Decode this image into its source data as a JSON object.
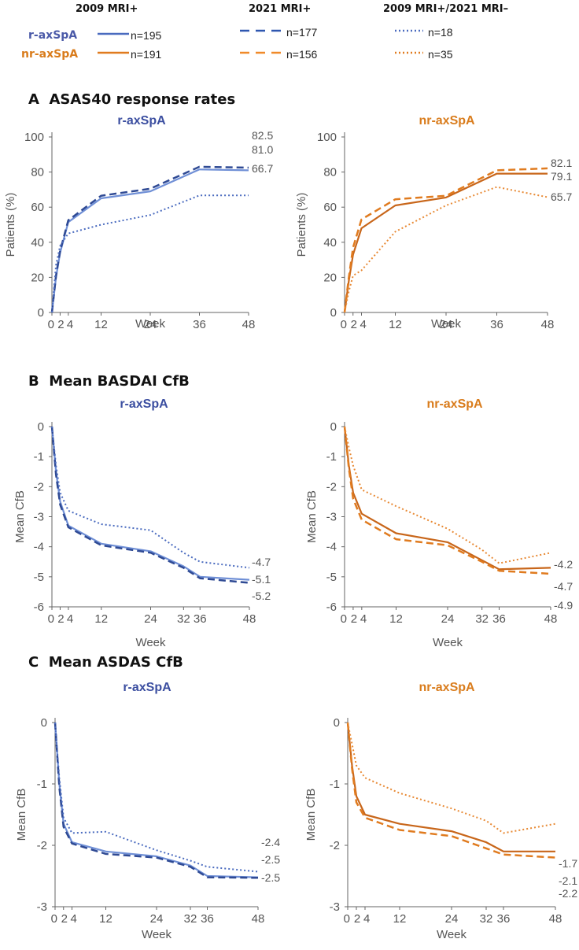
{
  "legend": {
    "col_headers": [
      "2009 MRI+",
      "2021 MRI+",
      "2009 MRI+/2021 MRI–"
    ],
    "rows": [
      {
        "label": "r-axSpA",
        "color": "#4a6bbf",
        "label_color": "#4b5aa8",
        "n": [
          "n=195",
          "n=177",
          "n=18"
        ]
      },
      {
        "label": "nr-axSpA",
        "color": "#e07b1f",
        "label_color": "#d97c1c",
        "n": [
          "n=191",
          "n=156",
          "n=35"
        ]
      }
    ],
    "styles": [
      "solid",
      "dashed",
      "dotted"
    ]
  },
  "sections": [
    {
      "letter": "A",
      "title": "ASAS40 response rates"
    },
    {
      "letter": "B",
      "title": "Mean BASDAI CfB"
    },
    {
      "letter": "C",
      "title": "Mean ASDAS CfB"
    }
  ],
  "colors": {
    "r": "#4a6bbf",
    "r_dark": "#2f4a94",
    "nr": "#c8661a",
    "nr_light": "#e07b1f",
    "axis": "#666666",
    "tick": "#555555"
  },
  "chart_data": [
    {
      "type": "line",
      "id": "A-r",
      "title": "r-axSpA",
      "xlabel": "Week",
      "ylabel": "Patients (%)",
      "xlim": [
        0,
        48
      ],
      "ylim": [
        0,
        100
      ],
      "xticks": [
        0,
        2,
        4,
        12,
        24,
        36,
        48
      ],
      "xtick_labels": [
        "0",
        "2",
        "4",
        "12",
        "24",
        "36",
        "48"
      ],
      "yticks": [
        0,
        20,
        40,
        60,
        80,
        100
      ],
      "ytick_labels": [
        "0",
        "20",
        "40",
        "60",
        "80",
        "100"
      ],
      "series": [
        {
          "name": "2009 MRI+",
          "style": "solid",
          "x": [
            0,
            1,
            2,
            4,
            12,
            24,
            36,
            48
          ],
          "y": [
            0,
            20,
            34,
            51.5,
            65,
            69,
            81.5,
            81.0
          ]
        },
        {
          "name": "2021 MRI+",
          "style": "dashed",
          "x": [
            0,
            1,
            2,
            4,
            12,
            24,
            36,
            48
          ],
          "y": [
            0,
            21,
            35,
            52.5,
            66.5,
            70.5,
            83,
            82.5
          ]
        },
        {
          "name": "2009 MRI+/2021 MRI–",
          "style": "dotted",
          "x": [
            0,
            1,
            2,
            4,
            12,
            24,
            36,
            48
          ],
          "y": [
            0,
            27,
            38,
            45,
            50,
            55.5,
            66.7,
            66.7
          ]
        }
      ],
      "end_labels": [
        "82.5",
        "81.0",
        "66.7"
      ]
    },
    {
      "type": "line",
      "id": "A-nr",
      "title": "nr-axSpA",
      "xlabel": "Week",
      "ylabel": "Patients (%)",
      "xlim": [
        0,
        48
      ],
      "ylim": [
        0,
        100
      ],
      "xticks": [
        0,
        2,
        4,
        12,
        24,
        36,
        48
      ],
      "xtick_labels": [
        "0",
        "2",
        "4",
        "12",
        "24",
        "36",
        "48"
      ],
      "yticks": [
        0,
        20,
        40,
        60,
        80,
        100
      ],
      "ytick_labels": [
        "0",
        "20",
        "40",
        "60",
        "80",
        "100"
      ],
      "series": [
        {
          "name": "2009 MRI+",
          "style": "solid",
          "x": [
            0,
            1,
            2,
            4,
            12,
            24,
            36,
            48
          ],
          "y": [
            0,
            18,
            33,
            48,
            61,
            65.5,
            79.1,
            79.1
          ]
        },
        {
          "name": "2021 MRI+",
          "style": "dashed",
          "x": [
            0,
            1,
            2,
            4,
            12,
            24,
            36,
            48
          ],
          "y": [
            0,
            20,
            37,
            53,
            64.5,
            66.5,
            81,
            82.1
          ]
        },
        {
          "name": "2009 MRI+/2021 MRI–",
          "style": "dotted",
          "x": [
            0,
            1,
            2,
            4,
            12,
            24,
            36,
            48
          ],
          "y": [
            0,
            12,
            21,
            24,
            46,
            61,
            71.5,
            65.7
          ]
        }
      ],
      "end_labels": [
        "82.1",
        "79.1",
        "65.7"
      ]
    },
    {
      "type": "line",
      "id": "B-r",
      "title": "r-axSpA",
      "xlabel": "Week",
      "ylabel": "Mean CfB",
      "xlim": [
        0,
        48
      ],
      "ylim": [
        -6,
        0
      ],
      "xticks": [
        0,
        2,
        4,
        12,
        24,
        32,
        36,
        48
      ],
      "xtick_labels": [
        "0",
        "2",
        "4",
        "12",
        "24",
        "32",
        "36",
        "48"
      ],
      "yticks": [
        0,
        -1,
        -2,
        -3,
        -4,
        -5,
        -6
      ],
      "ytick_labels": [
        "0",
        "-1",
        "-2",
        "-3",
        "-4",
        "-5",
        "-6"
      ],
      "series": [
        {
          "name": "2009 MRI+",
          "style": "solid",
          "x": [
            0,
            1,
            2,
            4,
            12,
            24,
            32,
            36,
            48
          ],
          "y": [
            0,
            -1.5,
            -2.5,
            -3.3,
            -3.9,
            -4.15,
            -4.65,
            -5.0,
            -5.1
          ]
        },
        {
          "name": "2021 MRI+",
          "style": "dashed",
          "x": [
            0,
            1,
            2,
            4,
            12,
            24,
            32,
            36,
            48
          ],
          "y": [
            0,
            -1.6,
            -2.6,
            -3.35,
            -3.95,
            -4.2,
            -4.7,
            -5.05,
            -5.2
          ]
        },
        {
          "name": "2009 MRI+/2021 MRI–",
          "style": "dotted",
          "x": [
            0,
            1,
            2,
            4,
            12,
            24,
            32,
            36,
            48
          ],
          "y": [
            0,
            -1.3,
            -2.2,
            -2.8,
            -3.25,
            -3.45,
            -4.2,
            -4.5,
            -4.7
          ]
        }
      ],
      "end_labels": [
        "-4.7",
        "-5.1",
        "-5.2"
      ]
    },
    {
      "type": "line",
      "id": "B-nr",
      "title": "nr-axSpA",
      "xlabel": "Week",
      "ylabel": "Mean CfB",
      "xlim": [
        0,
        48
      ],
      "ylim": [
        -6,
        0
      ],
      "xticks": [
        0,
        2,
        4,
        12,
        24,
        32,
        36,
        48
      ],
      "xtick_labels": [
        "0",
        "2",
        "4",
        "12",
        "24",
        "32",
        "36",
        "48"
      ],
      "yticks": [
        0,
        -1,
        -2,
        -3,
        -4,
        -5,
        -6
      ],
      "ytick_labels": [
        "0",
        "-1",
        "-2",
        "-3",
        "-4",
        "-5",
        "-6"
      ],
      "series": [
        {
          "name": "2009 MRI+",
          "style": "solid",
          "x": [
            0,
            1,
            2,
            4,
            12,
            24,
            32,
            36,
            48
          ],
          "y": [
            0,
            -1.3,
            -2.2,
            -2.9,
            -3.55,
            -3.85,
            -4.45,
            -4.75,
            -4.7
          ]
        },
        {
          "name": "2021 MRI+",
          "style": "dashed",
          "x": [
            0,
            1,
            2,
            4,
            12,
            24,
            32,
            36,
            48
          ],
          "y": [
            0,
            -1.4,
            -2.4,
            -3.1,
            -3.75,
            -3.95,
            -4.5,
            -4.8,
            -4.9
          ]
        },
        {
          "name": "2009 MRI+/2021 MRI–",
          "style": "dotted",
          "x": [
            0,
            1,
            2,
            4,
            12,
            24,
            32,
            36,
            48
          ],
          "y": [
            0,
            -0.7,
            -1.3,
            -2.1,
            -2.65,
            -3.4,
            -4.1,
            -4.55,
            -4.2
          ]
        }
      ],
      "end_labels": [
        "-4.2",
        "-4.7",
        "-4.9"
      ]
    },
    {
      "type": "line",
      "id": "C-r",
      "title": "r-axSpA",
      "xlabel": "Week",
      "ylabel": "Mean CfB",
      "xlim": [
        0,
        48
      ],
      "ylim": [
        -3,
        0
      ],
      "xticks": [
        0,
        2,
        4,
        12,
        24,
        32,
        36,
        48
      ],
      "xtick_labels": [
        "0",
        "2",
        "4",
        "12",
        "24",
        "32",
        "36",
        "48"
      ],
      "yticks": [
        0,
        -1,
        -2,
        -3
      ],
      "ytick_labels": [
        "0",
        "-1",
        "-2",
        "-3"
      ],
      "series": [
        {
          "name": "2009 MRI+",
          "style": "solid",
          "x": [
            0,
            1,
            2,
            4,
            12,
            24,
            32,
            36,
            48
          ],
          "y": [
            0,
            -1.0,
            -1.65,
            -1.95,
            -2.1,
            -2.18,
            -2.33,
            -2.5,
            -2.52
          ]
        },
        {
          "name": "2021 MRI+",
          "style": "dashed",
          "x": [
            0,
            1,
            2,
            4,
            12,
            24,
            32,
            36,
            48
          ],
          "y": [
            0,
            -1.05,
            -1.7,
            -1.97,
            -2.14,
            -2.2,
            -2.35,
            -2.52,
            -2.53
          ]
        },
        {
          "name": "2009 MRI+/2021 MRI–",
          "style": "dotted",
          "x": [
            0,
            1,
            2,
            4,
            12,
            24,
            32,
            36,
            48
          ],
          "y": [
            0,
            -0.9,
            -1.55,
            -1.8,
            -1.78,
            -2.08,
            -2.25,
            -2.35,
            -2.43
          ]
        }
      ],
      "end_labels": [
        "-2.4",
        "-2.5",
        "-2.5"
      ]
    },
    {
      "type": "line",
      "id": "C-nr",
      "title": "nr-axSpA",
      "xlabel": "Week",
      "ylabel": "Mean CfB",
      "xlim": [
        0,
        48
      ],
      "ylim": [
        -3,
        0
      ],
      "xticks": [
        0,
        2,
        4,
        12,
        24,
        32,
        36,
        48
      ],
      "xtick_labels": [
        "0",
        "2",
        "4",
        "12",
        "24",
        "32",
        "36",
        "48"
      ],
      "yticks": [
        0,
        -1,
        -2,
        -3
      ],
      "ytick_labels": [
        "0",
        "-1",
        "-2",
        "-3"
      ],
      "series": [
        {
          "name": "2009 MRI+",
          "style": "solid",
          "x": [
            0,
            1,
            2,
            4,
            12,
            24,
            32,
            36,
            48
          ],
          "y": [
            0,
            -0.7,
            -1.2,
            -1.5,
            -1.65,
            -1.77,
            -1.95,
            -2.1,
            -2.1
          ]
        },
        {
          "name": "2021 MRI+",
          "style": "dashed",
          "x": [
            0,
            1,
            2,
            4,
            12,
            24,
            32,
            36,
            48
          ],
          "y": [
            0,
            -0.75,
            -1.3,
            -1.55,
            -1.75,
            -1.85,
            -2.05,
            -2.15,
            -2.2
          ]
        },
        {
          "name": "2009 MRI+/2021 MRI–",
          "style": "dotted",
          "x": [
            0,
            1,
            2,
            4,
            12,
            24,
            32,
            36,
            48
          ],
          "y": [
            0,
            -0.35,
            -0.7,
            -0.9,
            -1.15,
            -1.4,
            -1.6,
            -1.8,
            -1.65
          ]
        }
      ],
      "end_labels": [
        "-1.7",
        "-2.1",
        "-2.2"
      ]
    }
  ]
}
